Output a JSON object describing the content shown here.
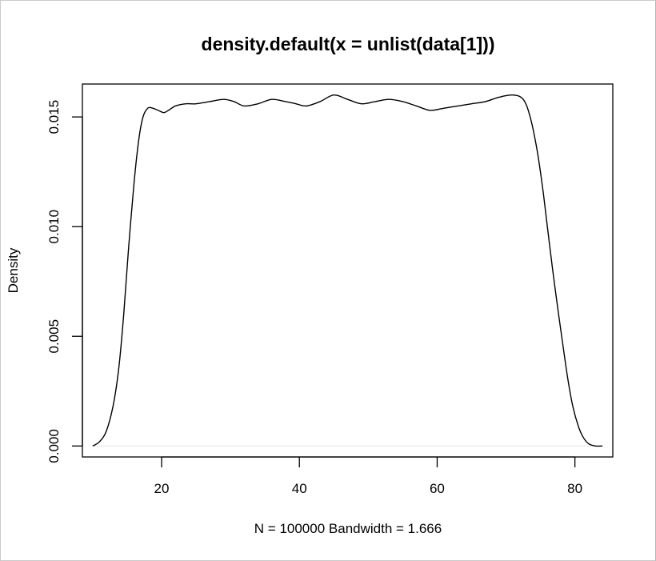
{
  "chart_data": {
    "type": "line",
    "title": "density.default(x = unlist(data[1]))",
    "xlabel": "N = 100000   Bandwidth = 1.666",
    "ylabel": "Density",
    "xlim": [
      8.5,
      85.5
    ],
    "ylim": [
      -0.0005,
      0.0165
    ],
    "x_ticks": [
      20,
      40,
      60,
      80
    ],
    "x_tick_labels": [
      "20",
      "40",
      "60",
      "80"
    ],
    "y_ticks": [
      0.0,
      0.005,
      0.01,
      0.015
    ],
    "y_tick_labels": [
      "0.000",
      "0.005",
      "0.010",
      "0.015"
    ],
    "grid": false,
    "zero_line": true,
    "line_color": "#000000",
    "zero_line_color": "#e6e6e6",
    "series": [
      {
        "x": [
          10.0,
          11.0,
          12.0,
          13.0,
          13.8,
          14.5,
          15.2,
          16.0,
          16.7,
          17.3,
          18.0,
          18.7,
          19.5,
          20.3,
          21.0,
          22.0,
          23.5,
          25.0,
          27.0,
          29.0,
          30.5,
          32.0,
          34.0,
          36.0,
          38.0,
          39.5,
          41.0,
          43.0,
          45.0,
          47.0,
          49.0,
          51.0,
          53.0,
          55.0,
          57.0,
          59.0,
          61.0,
          63.0,
          65.0,
          67.0,
          69.0,
          71.0,
          72.5,
          73.5,
          74.5,
          75.3,
          76.0,
          76.7,
          77.5,
          78.3,
          79.0,
          79.7,
          80.5,
          81.2,
          82.0,
          83.0,
          84.0
        ],
        "y": [
          0.0,
          0.0002,
          0.0007,
          0.0019,
          0.0036,
          0.006,
          0.009,
          0.012,
          0.014,
          0.015,
          0.0154,
          0.0154,
          0.0153,
          0.0152,
          0.0153,
          0.0155,
          0.0156,
          0.0156,
          0.0157,
          0.0158,
          0.0157,
          0.0155,
          0.0156,
          0.0158,
          0.0157,
          0.0156,
          0.0155,
          0.0157,
          0.016,
          0.0158,
          0.0156,
          0.0157,
          0.0158,
          0.0157,
          0.0155,
          0.0153,
          0.0154,
          0.0155,
          0.0156,
          0.0157,
          0.0159,
          0.016,
          0.0158,
          0.015,
          0.0135,
          0.0118,
          0.01,
          0.0082,
          0.0063,
          0.0045,
          0.003,
          0.0018,
          0.0009,
          0.0004,
          0.0001,
          0.0,
          0.0
        ]
      }
    ]
  }
}
